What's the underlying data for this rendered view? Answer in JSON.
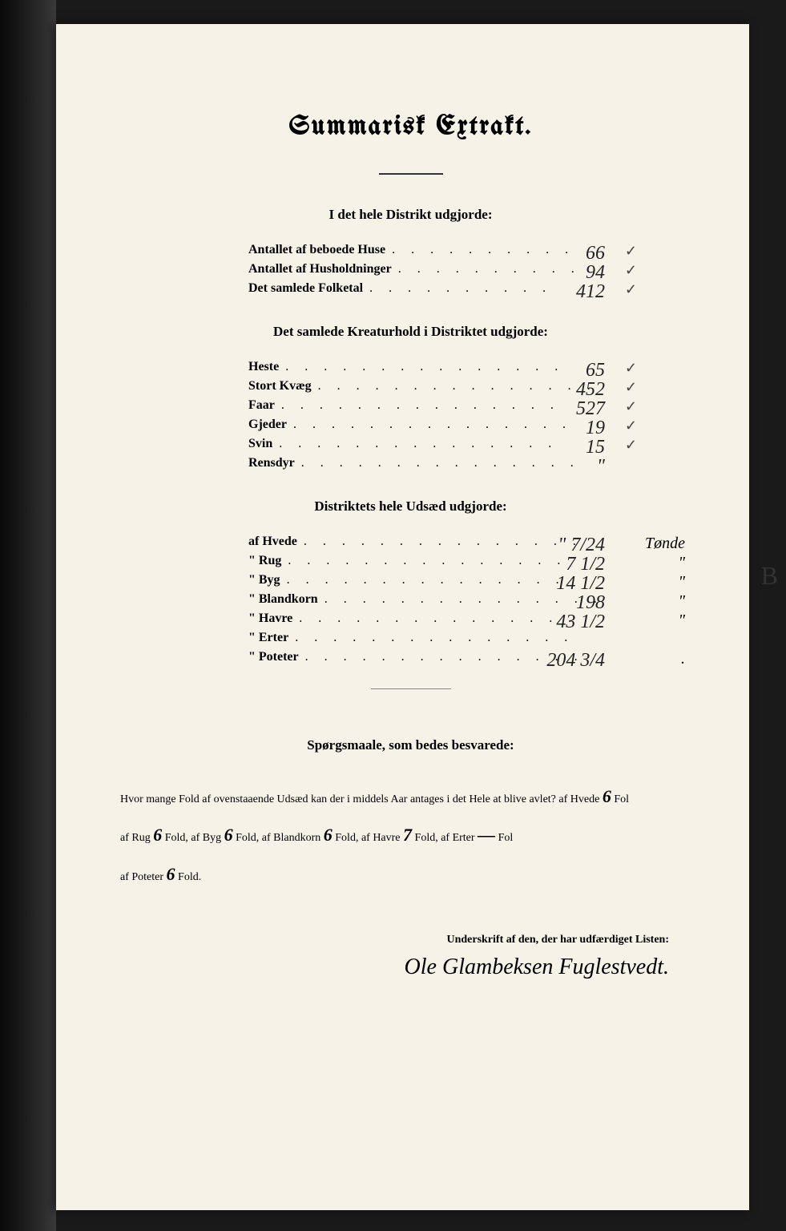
{
  "title": "Summarisk Extrakt.",
  "section1": {
    "heading": "I det hele Distrikt udgjorde:",
    "rows": [
      {
        "label": "Antallet af beboede Huse",
        "value": "66",
        "check": "✓"
      },
      {
        "label": "Antallet af Husholdninger",
        "value": "94",
        "check": "✓"
      },
      {
        "label": "Det samlede Folketal",
        "value": "412",
        "check": "✓"
      }
    ]
  },
  "section2": {
    "heading": "Det samlede Kreaturhold i Distriktet udgjorde:",
    "rows": [
      {
        "label": "Heste",
        "value": "65",
        "check": "✓"
      },
      {
        "label": "Stort Kvæg",
        "value": "452",
        "check": "✓"
      },
      {
        "label": "Faar",
        "value": "527",
        "check": "✓"
      },
      {
        "label": "Gjeder",
        "value": "19",
        "check": "✓"
      },
      {
        "label": "Svin",
        "value": "15",
        "check": "✓"
      },
      {
        "label": "Rensdyr",
        "value": "\"",
        "check": ""
      }
    ]
  },
  "section3": {
    "heading": "Distriktets hele Udsæd udgjorde:",
    "rows": [
      {
        "label": "af Hvede",
        "value": "\" 7/24",
        "unit": "Tønde"
      },
      {
        "label": "\" Rug",
        "value": "7 1/2",
        "unit": "\""
      },
      {
        "label": "\" Byg",
        "value": "14 1/2",
        "unit": "\""
      },
      {
        "label": "\" Blandkorn",
        "value": "198",
        "unit": "\""
      },
      {
        "label": "\" Havre",
        "value": "43 1/2",
        "unit": "\""
      },
      {
        "label": "\" Erter",
        "value": "",
        "unit": ""
      },
      {
        "label": "\" Poteter",
        "value": "204 3/4",
        "unit": "."
      }
    ]
  },
  "questions": {
    "heading": "Spørgsmaale, som bedes besvarede:",
    "line1_a": "Hvor mange Fold af ovenstaaende Udsæd kan der i middels Aar antages i det Hele at blive avlet? af Hvede ",
    "hvede": "6",
    "line1_b": " Fol",
    "line2_a": "af Rug ",
    "rug": "6",
    "line2_b": " Fold, af Byg ",
    "byg": "6",
    "line2_c": " Fold, af Blandkorn ",
    "blandkorn": "6",
    "line2_d": " Fold, af Havre ",
    "havre": "7",
    "line2_e": " Fold, af Erter ",
    "erter": "—",
    "line2_f": " Fol",
    "line3_a": "af Poteter ",
    "poteter": "6",
    "line3_b": " Fold."
  },
  "signature": {
    "label": "Underskrift af den, der har udfærdiget Listen:",
    "name": "Ole Glambeksen Fuglestvedt."
  },
  "margin_letter": "B",
  "dots_short": ". . . . . . . . . .",
  "dots_long": ". . . . . . . . . . . . . . ."
}
